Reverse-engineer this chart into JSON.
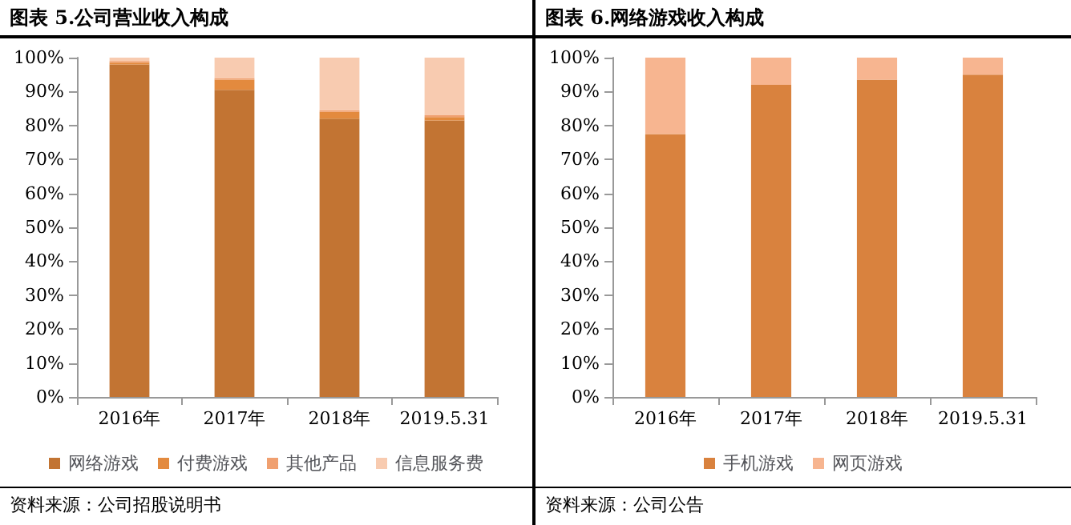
{
  "chart_data": [
    {
      "type": "bar",
      "title": "图表 5.公司营业收入构成",
      "stacked": true,
      "categories": [
        "2016年",
        "2017年",
        "2018年",
        "2019.5.31"
      ],
      "series": [
        {
          "name": "网络游戏",
          "color": "#c27433",
          "values": [
            98,
            90.5,
            82,
            81.5
          ]
        },
        {
          "name": "付费游戏",
          "color": "#e38a3e",
          "values": [
            0.5,
            3,
            2,
            1
          ]
        },
        {
          "name": "其他产品",
          "color": "#f0a070",
          "values": [
            0.5,
            0.5,
            0.5,
            0.5
          ]
        },
        {
          "name": "信息服务费",
          "color": "#f8cbb0",
          "values": [
            1,
            6,
            15.5,
            17
          ]
        }
      ],
      "ylim": [
        0,
        100
      ],
      "yticks": [
        {
          "value": 0,
          "label": "0%"
        },
        {
          "value": 10,
          "label": "10%"
        },
        {
          "value": 20,
          "label": "20%"
        },
        {
          "value": 30,
          "label": "30%"
        },
        {
          "value": 40,
          "label": "40%"
        },
        {
          "value": 50,
          "label": "50%"
        },
        {
          "value": 60,
          "label": "60%"
        },
        {
          "value": 70,
          "label": "70%"
        },
        {
          "value": 80,
          "label": "80%"
        },
        {
          "value": 90,
          "label": "90%"
        },
        {
          "value": 100,
          "label": "100%"
        }
      ],
      "grid": false,
      "legend": "bottom",
      "annotations": [
        "资料来源：公司招股说明书"
      ]
    },
    {
      "type": "bar",
      "title": "图表 6.网络游戏收入构成",
      "stacked": true,
      "categories": [
        "2016年",
        "2017年",
        "2018年",
        "2019.5.31"
      ],
      "series": [
        {
          "name": "手机游戏",
          "color": "#d9823e",
          "values": [
            77.5,
            92,
            93.5,
            95
          ]
        },
        {
          "name": "网页游戏",
          "color": "#f7b590",
          "values": [
            22.5,
            8,
            6.5,
            5
          ]
        }
      ],
      "ylim": [
        0,
        100
      ],
      "yticks": [
        {
          "value": 0,
          "label": "0%"
        },
        {
          "value": 10,
          "label": "10%"
        },
        {
          "value": 20,
          "label": "20%"
        },
        {
          "value": 30,
          "label": "30%"
        },
        {
          "value": 40,
          "label": "40%"
        },
        {
          "value": 50,
          "label": "50%"
        },
        {
          "value": 60,
          "label": "60%"
        },
        {
          "value": 70,
          "label": "70%"
        },
        {
          "value": 80,
          "label": "80%"
        },
        {
          "value": 90,
          "label": "90%"
        },
        {
          "value": 100,
          "label": "100%"
        }
      ],
      "grid": false,
      "legend": "bottom",
      "annotations": [
        "资料来源：公司公告"
      ]
    }
  ]
}
